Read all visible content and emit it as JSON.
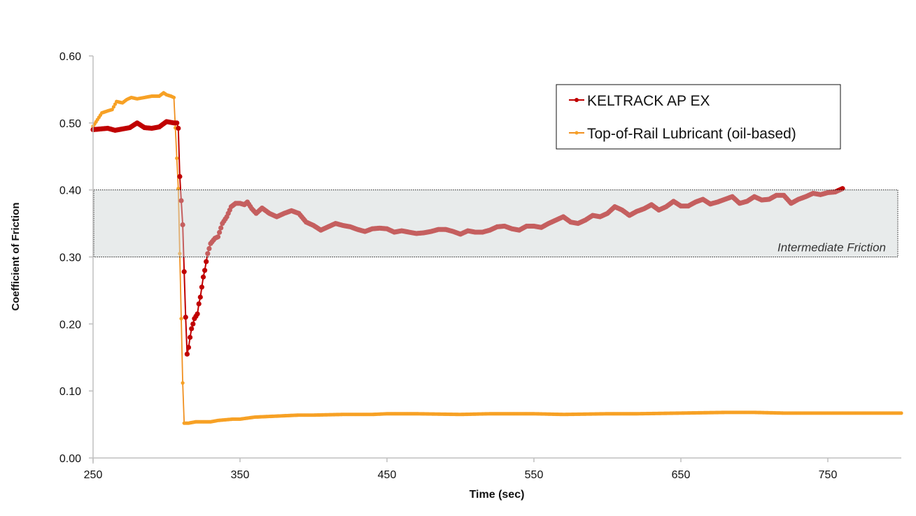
{
  "chart_data": {
    "type": "line",
    "title": "",
    "xlabel": "Time (sec)",
    "ylabel": "Coefficient of Friction",
    "xlim": [
      250,
      800
    ],
    "ylim": [
      0,
      0.6
    ],
    "xticks": [
      "250",
      "350",
      "450",
      "550",
      "650",
      "750"
    ],
    "yticks": [
      "0.00",
      "0.10",
      "0.20",
      "0.30",
      "0.40",
      "0.50",
      "0.60"
    ],
    "grid": false,
    "legend_position": "top-right",
    "annotation": {
      "label": "Intermediate Friction",
      "y_range": [
        0.3,
        0.4
      ]
    },
    "series": [
      {
        "name": "KELTRACK AP EX",
        "color": "#c00000",
        "x": [
          250,
          255,
          260,
          265,
          270,
          275,
          280,
          285,
          290,
          295,
          300,
          305,
          307,
          308,
          309,
          311,
          312,
          313,
          314,
          315,
          316,
          317,
          318,
          319,
          321,
          322,
          323,
          324,
          325,
          326,
          327,
          328,
          330,
          333,
          335,
          338,
          341,
          344,
          347,
          350,
          353,
          355,
          358,
          361,
          365,
          370,
          375,
          380,
          385,
          390,
          395,
          400,
          405,
          410,
          415,
          420,
          425,
          430,
          435,
          440,
          445,
          450,
          455,
          460,
          465,
          470,
          475,
          480,
          485,
          490,
          495,
          500,
          505,
          510,
          515,
          520,
          525,
          530,
          535,
          540,
          545,
          550,
          555,
          560,
          565,
          570,
          575,
          580,
          585,
          590,
          595,
          600,
          605,
          610,
          615,
          620,
          625,
          630,
          635,
          640,
          645,
          650,
          655,
          660,
          665,
          670,
          675,
          680,
          685,
          690,
          695,
          700,
          705,
          710,
          715,
          720,
          725,
          730,
          735,
          740,
          745,
          750,
          755,
          760
        ],
        "y": [
          0.49,
          0.491,
          0.492,
          0.489,
          0.491,
          0.493,
          0.5,
          0.493,
          0.492,
          0.494,
          0.502,
          0.5,
          0.5,
          0.492,
          0.42,
          0.348,
          0.278,
          0.21,
          0.155,
          0.165,
          0.18,
          0.193,
          0.2,
          0.208,
          0.215,
          0.23,
          0.24,
          0.255,
          0.27,
          0.28,
          0.293,
          0.305,
          0.32,
          0.328,
          0.33,
          0.35,
          0.36,
          0.375,
          0.38,
          0.38,
          0.378,
          0.382,
          0.372,
          0.365,
          0.373,
          0.365,
          0.36,
          0.365,
          0.369,
          0.365,
          0.352,
          0.347,
          0.34,
          0.345,
          0.35,
          0.347,
          0.345,
          0.341,
          0.338,
          0.342,
          0.343,
          0.342,
          0.337,
          0.339,
          0.337,
          0.335,
          0.336,
          0.338,
          0.341,
          0.341,
          0.338,
          0.334,
          0.339,
          0.337,
          0.337,
          0.34,
          0.345,
          0.346,
          0.342,
          0.34,
          0.346,
          0.346,
          0.344,
          0.35,
          0.355,
          0.36,
          0.352,
          0.35,
          0.355,
          0.362,
          0.36,
          0.365,
          0.375,
          0.37,
          0.362,
          0.368,
          0.372,
          0.378,
          0.37,
          0.375,
          0.383,
          0.376,
          0.376,
          0.382,
          0.386,
          0.379,
          0.382,
          0.386,
          0.39,
          0.38,
          0.383,
          0.39,
          0.385,
          0.386,
          0.392,
          0.392,
          0.38,
          0.386,
          0.39,
          0.395,
          0.393,
          0.396,
          0.397,
          0.402
        ]
      },
      {
        "name": "Top-of-Rail Lubricant (oil-based)",
        "color": "#f7a125",
        "x": [
          250,
          253,
          256,
          260,
          263,
          266,
          270,
          273,
          276,
          280,
          285,
          290,
          295,
          298,
          300,
          303,
          305,
          308,
          309,
          310,
          311,
          312,
          315,
          320,
          325,
          330,
          335,
          340,
          345,
          350,
          360,
          370,
          380,
          390,
          400,
          420,
          440,
          450,
          470,
          500,
          520,
          550,
          570,
          600,
          620,
          650,
          680,
          700,
          720,
          750,
          770,
          800
        ],
        "y": [
          0.495,
          0.505,
          0.515,
          0.518,
          0.52,
          0.532,
          0.53,
          0.535,
          0.538,
          0.536,
          0.538,
          0.54,
          0.54,
          0.545,
          0.542,
          0.54,
          0.538,
          0.402,
          0.305,
          0.208,
          0.112,
          0.052,
          0.052,
          0.054,
          0.054,
          0.054,
          0.056,
          0.057,
          0.058,
          0.058,
          0.061,
          0.062,
          0.063,
          0.064,
          0.064,
          0.065,
          0.065,
          0.066,
          0.066,
          0.065,
          0.066,
          0.066,
          0.065,
          0.066,
          0.066,
          0.067,
          0.068,
          0.068,
          0.067,
          0.067,
          0.067,
          0.067
        ]
      }
    ]
  }
}
